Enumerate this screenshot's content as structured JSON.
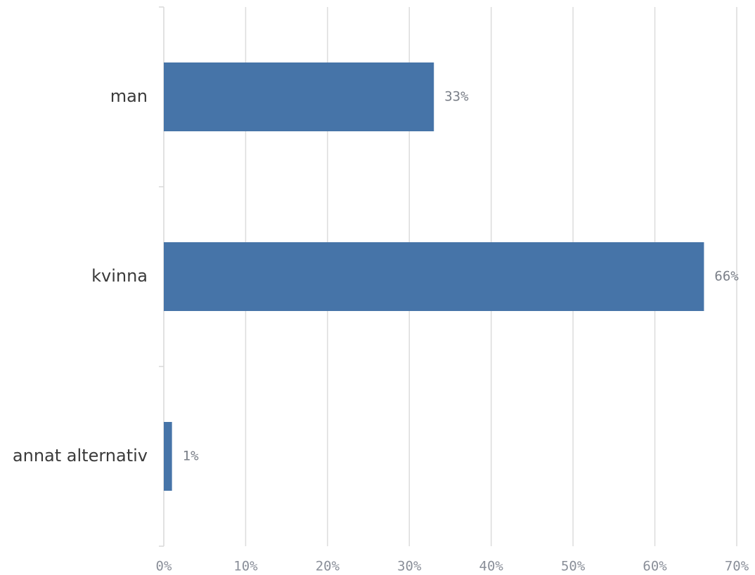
{
  "chart_data": {
    "type": "bar",
    "orientation": "horizontal",
    "categories": [
      "man",
      "kvinna",
      "annat alternativ"
    ],
    "values": [
      33,
      66,
      1
    ],
    "value_labels": [
      "33%",
      "66%",
      "1%"
    ],
    "color": "#4674a8",
    "xlim": [
      0,
      70
    ],
    "xticks": [
      {
        "value": 0,
        "label": "0%"
      },
      {
        "value": 10,
        "label": "10%"
      },
      {
        "value": 20,
        "label": "20%"
      },
      {
        "value": 30,
        "label": "30%"
      },
      {
        "value": 40,
        "label": "40%"
      },
      {
        "value": 50,
        "label": "50%"
      },
      {
        "value": 60,
        "label": "60%"
      },
      {
        "value": 70,
        "label": "70%"
      }
    ],
    "grid": true
  }
}
